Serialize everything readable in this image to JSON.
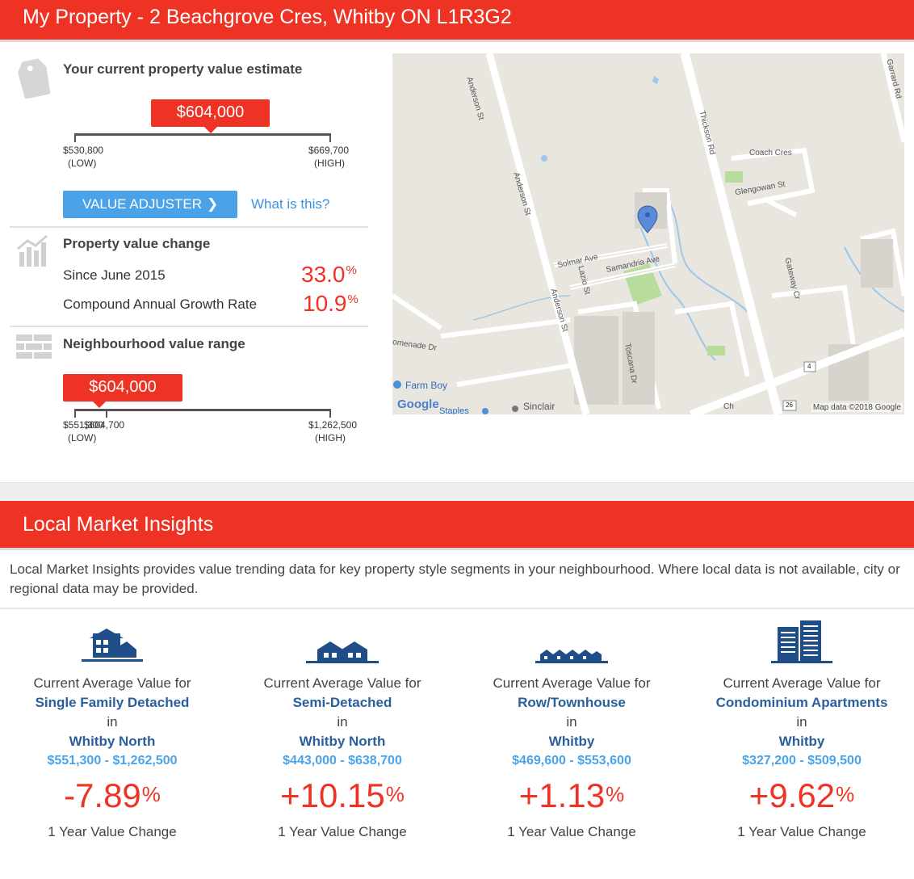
{
  "header": {
    "title": "My Property - 2 Beachgrove Cres, Whitby ON L1R3G2"
  },
  "estimate": {
    "title": "Your current property value estimate",
    "value": "$604,000",
    "low": "$530,800",
    "low_label": "(LOW)",
    "high": "$669,700",
    "high_label": "(HIGH)",
    "position": 0.53,
    "adjuster_label": "VALUE ADJUSTER",
    "what_is_this": "What is this?"
  },
  "value_change": {
    "title": "Property value change",
    "rows": [
      {
        "label": "Since June 2015",
        "value": "33.0",
        "unit": "%"
      },
      {
        "label": "Compound Annual Growth Rate",
        "value": "10.9",
        "unit": "%"
      }
    ]
  },
  "neighbourhood": {
    "title": "Neighbourhood value range",
    "value": "$604,000",
    "low": "$551,300",
    "marker": "$604,700",
    "low_label": "(LOW)",
    "high": "$1,262,500",
    "high_label": "(HIGH)",
    "position": 0.13
  },
  "map": {
    "attribution": "Map data ©2018 Google",
    "brand": "Google",
    "labels": {
      "anderson1": "Anderson St",
      "anderson2": "Anderson St",
      "anderson3": "Anderson St",
      "thickson": "Thickson Rd",
      "garrard": "Garrard Rd",
      "coach": "Coach Cres",
      "glengowan": "Glengowan St",
      "solmar": "Solmar Ave",
      "samandria": "Samandria Ave",
      "lazio": "Lazio St",
      "gateway": "Gateway Cr",
      "toscana": "Toscana Dr",
      "promenade": "omenade Dr",
      "farmboy": "Farm Boy",
      "sinclair": "Sinclair",
      "staples": "Staples",
      "route4": "4",
      "route26": "26",
      "ch": "Ch"
    }
  },
  "lmi": {
    "title": "Local Market Insights",
    "description": "Local Market Insights provides value trending data for key property style segments in your neighbourhood. Where local data is not available, city or regional data may be provided.",
    "cards": [
      {
        "intro": "Current Average Value for",
        "type": "Single Family Detached",
        "in": "in",
        "area": "Whitby North",
        "range": "$551,300 - $1,262,500",
        "change": "-7.89",
        "unit": "%",
        "change_label": "1 Year Value Change"
      },
      {
        "intro": "Current Average Value for",
        "type": "Semi-Detached",
        "in": "in",
        "area": "Whitby North",
        "range": "$443,000 - $638,700",
        "change": "+10.15",
        "unit": "%",
        "change_label": "1 Year Value Change"
      },
      {
        "intro": "Current Average Value for",
        "type": "Row/Townhouse",
        "in": "in",
        "area": "Whitby",
        "range": "$469,600 - $553,600",
        "change": "+1.13",
        "unit": "%",
        "change_label": "1 Year Value Change"
      },
      {
        "intro": "Current Average Value for",
        "type": "Condominium Apartments",
        "in": "in",
        "area": "Whitby",
        "range": "$327,200 - $509,500",
        "change": "+9.62",
        "unit": "%",
        "change_label": "1 Year Value Change"
      }
    ]
  },
  "colors": {
    "accent": "#ee3324",
    "blue": "#4aa3e8",
    "navy": "#1f4d87"
  },
  "icons": {
    "estimate": "price-tag-icon",
    "change": "growth-chart-icon",
    "neighbourhood": "brick-wall-icon",
    "adjuster": "chevron-right-icon",
    "pin": "map-pin-icon"
  }
}
